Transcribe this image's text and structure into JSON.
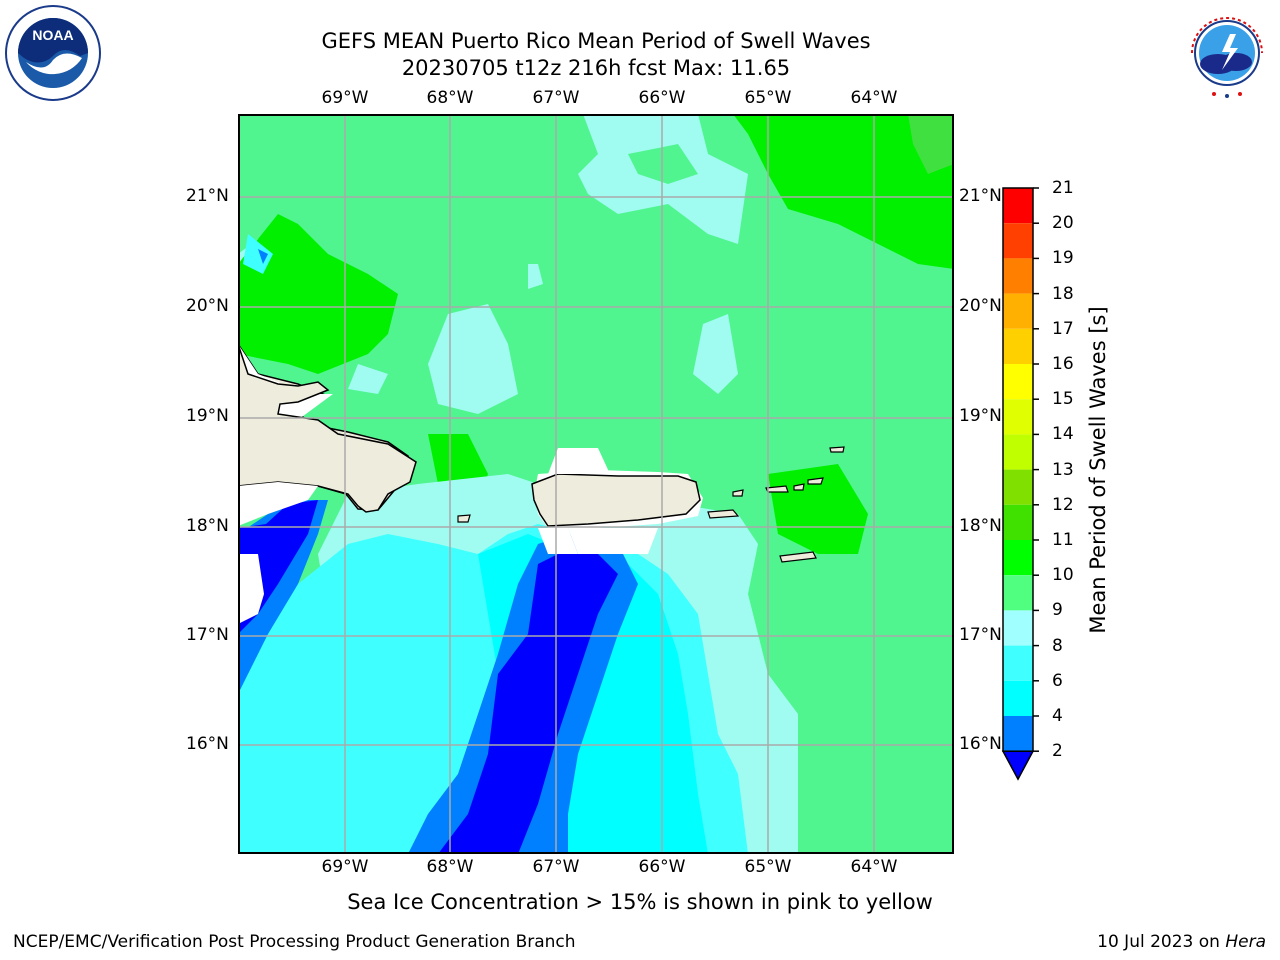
{
  "title": {
    "line1": "GEFS MEAN Puerto Rico Mean Period of Swell Waves",
    "line2": "20230705 t12z 216h fcst   Max: 11.65"
  },
  "map": {
    "lon_labels": [
      "69°W",
      "68°W",
      "67°W",
      "66°W",
      "65°W",
      "64°W"
    ],
    "lat_labels": [
      "21°N",
      "20°N",
      "19°N",
      "18°N",
      "17°N",
      "16°N"
    ],
    "land_color": "#eeecdc"
  },
  "colorbar": {
    "label": "Mean Period of Swell Waves [s]",
    "ticks": [
      "2",
      "4",
      "6",
      "8",
      "9",
      "10",
      "11",
      "12",
      "13",
      "14",
      "15",
      "16",
      "17",
      "18",
      "19",
      "20",
      "21"
    ],
    "colors": [
      "#0000ff",
      "#0080ff",
      "#00ffff",
      "#40ffff",
      "#a0ffff",
      "#50ff80",
      "#00ff00",
      "#40e000",
      "#80e000",
      "#c0ff00",
      "#e0ff00",
      "#ffff00",
      "#ffd000",
      "#ffb000",
      "#ff8000",
      "#ff4000",
      "#ff0000"
    ]
  },
  "note": "Sea Ice Concentration > 15% is shown in pink to yellow",
  "footer": {
    "left": "NCEP/EMC/Verification Post Processing Product Generation Branch",
    "right_date": "10 Jul 2023 on ",
    "right_host": "Hera"
  },
  "logos": {
    "noaa_text": "NOAA",
    "nws_text": "NATIONAL WEATHER SERVICE"
  }
}
